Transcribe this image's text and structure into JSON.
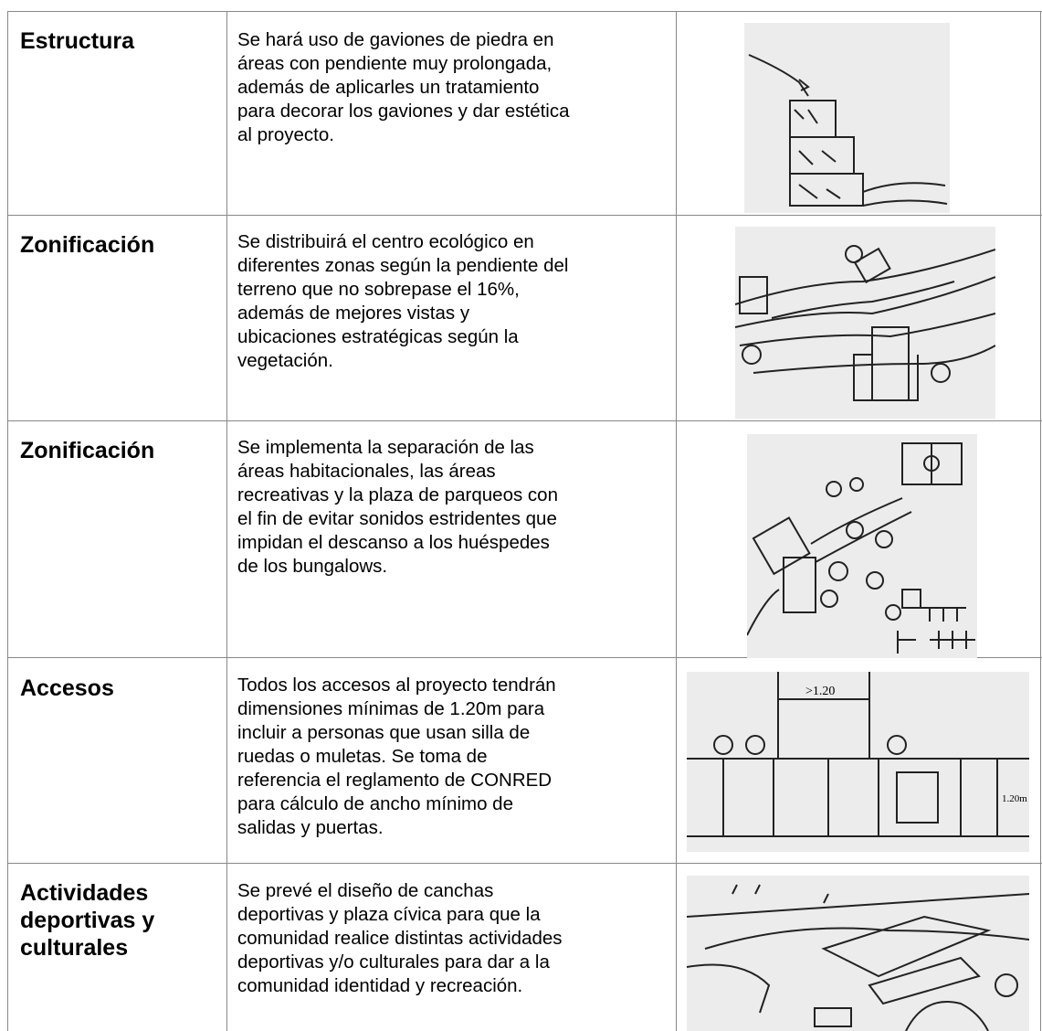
{
  "rows": [
    {
      "heading": [
        "Estructura"
      ],
      "description": [
        "Se hará uso de gaviones de piedra en",
        "áreas con pendiente muy prolongada,",
        "además de aplicarles un tratamiento",
        "para decorar los gaviones y dar estética",
        "al proyecto."
      ]
    },
    {
      "heading": [
        "Zonificación"
      ],
      "description": [
        "Se distribuirá el centro ecológico en",
        "diferentes zonas según la pendiente del",
        "terreno que no sobrepase el 16%,",
        "además de mejores vistas y",
        "ubicaciones estratégicas según la",
        "vegetación."
      ]
    },
    {
      "heading": [
        "Zonificación"
      ],
      "description": [
        "Se implementa la separación de las",
        "áreas habitacionales, las áreas",
        "recreativas y la plaza de parqueos con",
        "el fin de evitar sonidos estridentes que",
        "impidan el descanso a los huéspedes",
        "de los bungalows."
      ]
    },
    {
      "heading": [
        "Accesos"
      ],
      "description": [
        "Todos los accesos al proyecto tendrán",
        "dimensiones mínimas de 1.20m para",
        "incluir a personas que usan silla de",
        "ruedas o muletas. Se toma de",
        "referencia el reglamento de CONRED",
        "para cálculo de ancho mínimo de",
        "salidas y puertas."
      ]
    },
    {
      "heading": [
        "Actividades",
        "deportivas y",
        "culturales"
      ],
      "description": [
        "Se prevé el diseño de canchas",
        "deportivas y plaza cívica para que la",
        "comunidad realice distintas actividades",
        "deportivas y/o culturales para dar a la",
        "comunidad identidad y recreación."
      ]
    }
  ]
}
